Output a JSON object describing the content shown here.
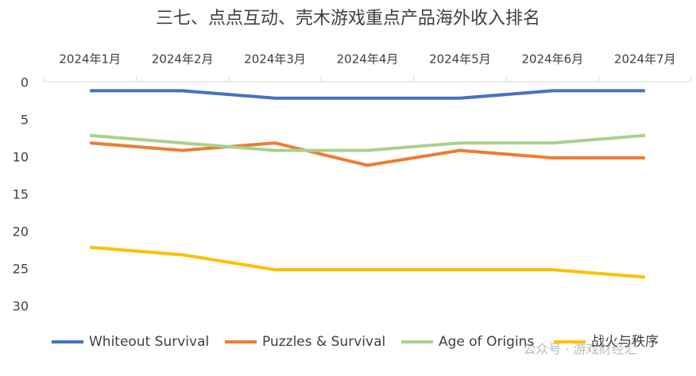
{
  "chart_data": {
    "type": "line",
    "title": "三七、点点互动、壳木游戏重点产品海外收入排名",
    "categories": [
      "2024年1月",
      "2024年2月",
      "2024年3月",
      "2024年4月",
      "2024年5月",
      "2024年6月",
      "2024年7月"
    ],
    "series": [
      {
        "name": "Whiteout Survival",
        "color": "#4472c4",
        "values": [
          1,
          1,
          2,
          2,
          2,
          1,
          1
        ]
      },
      {
        "name": "Puzzles & Survival",
        "color": "#ed7d31",
        "values": [
          8,
          9,
          8,
          11,
          9,
          10,
          10
        ]
      },
      {
        "name": "Age of Origins",
        "color": "#a9d18e",
        "values": [
          7,
          8,
          9,
          9,
          8,
          8,
          7
        ]
      },
      {
        "name": "战火与秩序",
        "color": "#ffc000",
        "values": [
          22,
          23,
          25,
          25,
          25,
          25,
          26
        ]
      }
    ],
    "ylim": [
      0,
      30
    ],
    "yticks": [
      0,
      5,
      10,
      15,
      20,
      25,
      30
    ],
    "y_reversed": true,
    "grid": false,
    "legend": "bottom",
    "watermark": "公众号 · 游戏财经汇"
  }
}
